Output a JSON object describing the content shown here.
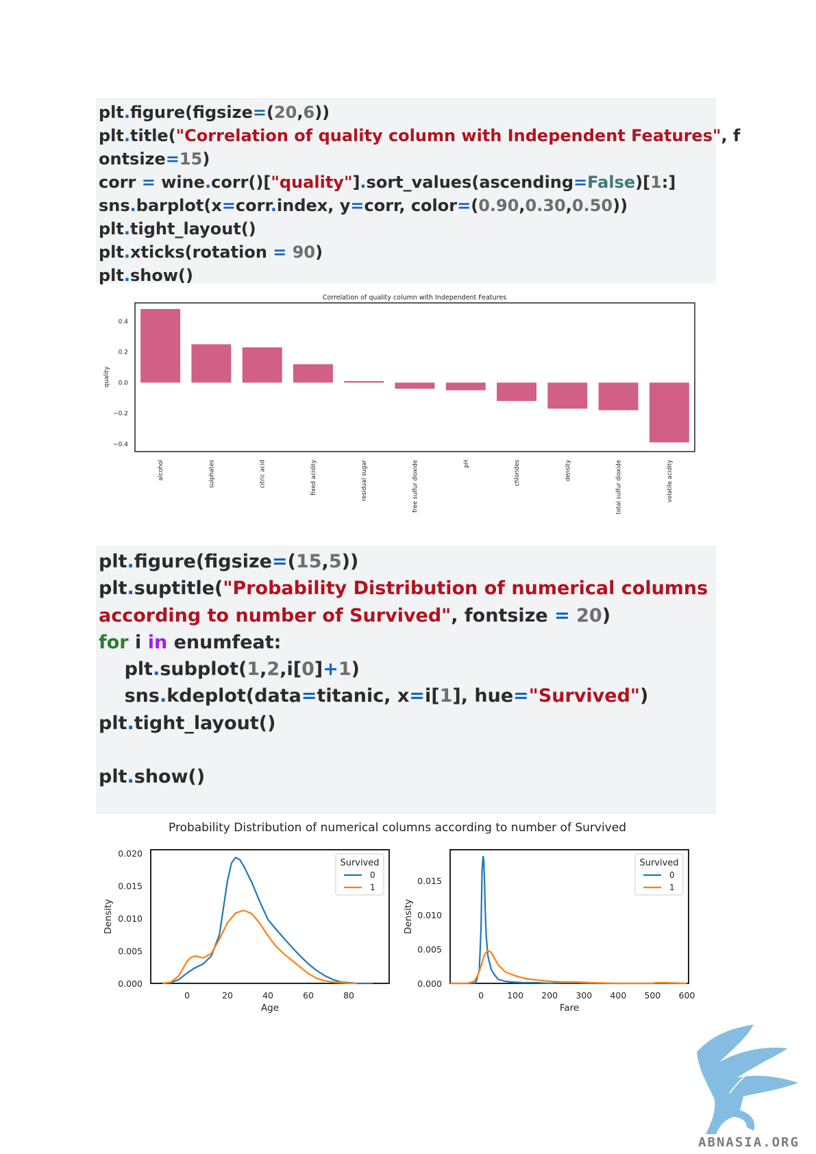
{
  "code_block_1": {
    "lines": [
      [
        [
          "plt",
          ""
        ],
        [
          ".",
          "op"
        ],
        [
          "figure(figsize",
          ""
        ],
        [
          "=",
          "op"
        ],
        [
          "(",
          ""
        ],
        [
          "20",
          "num"
        ],
        [
          ",",
          ""
        ],
        [
          "6",
          "num"
        ],
        [
          "))",
          ""
        ]
      ],
      [
        [
          "plt",
          ""
        ],
        [
          ".",
          "op"
        ],
        [
          "title(",
          ""
        ],
        [
          "\"Correlation of quality column with Independent Features\"",
          "str"
        ],
        [
          ", f",
          ""
        ]
      ],
      [
        [
          "ontsize",
          ""
        ],
        [
          "=",
          "op"
        ],
        [
          "15",
          "num"
        ],
        [
          ")",
          ""
        ]
      ],
      [
        [
          "corr ",
          ""
        ],
        [
          "=",
          "op"
        ],
        [
          " wine",
          ""
        ],
        [
          ".",
          "op"
        ],
        [
          "corr()[",
          ""
        ],
        [
          "\"quality\"",
          "str"
        ],
        [
          "]",
          ""
        ],
        [
          ".",
          "op"
        ],
        [
          "sort_values(ascending",
          ""
        ],
        [
          "=",
          "op"
        ],
        [
          "False",
          "bool"
        ],
        [
          ")[",
          ""
        ],
        [
          "1",
          "num"
        ],
        [
          ":]",
          ""
        ]
      ],
      [
        [
          "sns",
          ""
        ],
        [
          ".",
          "op"
        ],
        [
          "barplot(x",
          ""
        ],
        [
          "=",
          "op"
        ],
        [
          "corr",
          ""
        ],
        [
          ".",
          "op"
        ],
        [
          "index, y",
          ""
        ],
        [
          "=",
          "op"
        ],
        [
          "corr, color",
          ""
        ],
        [
          "=",
          "op"
        ],
        [
          "(",
          ""
        ],
        [
          "0.90",
          "num"
        ],
        [
          ",",
          ""
        ],
        [
          "0.30",
          "num"
        ],
        [
          ",",
          ""
        ],
        [
          "0.50",
          "num"
        ],
        [
          "))",
          ""
        ]
      ],
      [
        [
          "plt",
          ""
        ],
        [
          ".",
          "op"
        ],
        [
          "tight_layout()",
          ""
        ]
      ],
      [
        [
          "plt",
          ""
        ],
        [
          ".",
          "op"
        ],
        [
          "xticks(rotation ",
          ""
        ],
        [
          "=",
          "op"
        ],
        [
          " ",
          ""
        ],
        [
          "90",
          "num"
        ],
        [
          ")",
          ""
        ]
      ],
      [
        [
          "plt",
          ""
        ],
        [
          ".",
          "op"
        ],
        [
          "show()",
          ""
        ]
      ]
    ]
  },
  "code_block_2": {
    "lines": [
      [
        [
          "plt",
          ""
        ],
        [
          ".",
          "op"
        ],
        [
          "figure(figsize",
          ""
        ],
        [
          "=",
          "op"
        ],
        [
          "(",
          ""
        ],
        [
          "15",
          "num"
        ],
        [
          ",",
          ""
        ],
        [
          "5",
          "num"
        ],
        [
          "))",
          ""
        ]
      ],
      [
        [
          "plt",
          ""
        ],
        [
          ".",
          "op"
        ],
        [
          "suptitle(",
          ""
        ],
        [
          "\"Probability Distribution of numerical columns",
          "str"
        ]
      ],
      [
        [
          "according to number of Survived\"",
          "str"
        ],
        [
          ", fontsize ",
          ""
        ],
        [
          "=",
          "op"
        ],
        [
          " ",
          ""
        ],
        [
          "20",
          "num"
        ],
        [
          ")",
          ""
        ]
      ],
      [
        [
          "for",
          "kw"
        ],
        [
          " i ",
          ""
        ],
        [
          "in",
          "kw2"
        ],
        [
          " enumfeat:",
          ""
        ]
      ],
      [
        [
          "    plt",
          ""
        ],
        [
          ".",
          "op"
        ],
        [
          "subplot(",
          ""
        ],
        [
          "1",
          "num"
        ],
        [
          ",",
          ""
        ],
        [
          "2",
          "num"
        ],
        [
          ",i[",
          ""
        ],
        [
          "0",
          "num"
        ],
        [
          "]",
          ""
        ],
        [
          "+",
          "op"
        ],
        [
          "1",
          "num"
        ],
        [
          ")",
          ""
        ]
      ],
      [
        [
          "    sns",
          ""
        ],
        [
          ".",
          "op"
        ],
        [
          "kdeplot(data",
          ""
        ],
        [
          "=",
          "op"
        ],
        [
          "titanic, x",
          ""
        ],
        [
          "=",
          "op"
        ],
        [
          "i[",
          ""
        ],
        [
          "1",
          "num"
        ],
        [
          "], hue",
          ""
        ],
        [
          "=",
          "op"
        ],
        [
          "\"Survived\"",
          "str"
        ],
        [
          ")",
          ""
        ]
      ],
      [
        [
          "plt",
          ""
        ],
        [
          ".",
          "op"
        ],
        [
          "tight_layout()",
          ""
        ]
      ],
      [
        [
          "",
          ""
        ]
      ],
      [
        [
          "plt",
          ""
        ],
        [
          ".",
          "op"
        ],
        [
          "show()",
          ""
        ]
      ]
    ]
  },
  "chart_data": [
    {
      "type": "bar",
      "title": "Correlation of quality column with Independent Features",
      "xlabel": "",
      "ylabel": "quality",
      "ylim": [
        -0.45,
        0.52
      ],
      "yticks": [
        "0.4",
        "0.2",
        "0.0",
        "−0.2",
        "−0.4"
      ],
      "ytick_values": [
        0.4,
        0.2,
        0.0,
        -0.2,
        -0.4
      ],
      "categories": [
        "alcohol",
        "sulphates",
        "citric acid",
        "fixed acidity",
        "residual sugar",
        "free sulfur dioxide",
        "pH",
        "chlorides",
        "density",
        "total sulfur dioxide",
        "volatile acidity"
      ],
      "values": [
        0.48,
        0.25,
        0.23,
        0.12,
        0.01,
        -0.04,
        -0.05,
        -0.12,
        -0.17,
        -0.18,
        -0.39
      ],
      "color": "#d15f86",
      "grid": false
    },
    {
      "type": "line",
      "title": "",
      "xlabel": "Age",
      "ylabel": "Density",
      "xlim": [
        -18,
        100
      ],
      "ylim": [
        0,
        0.0205
      ],
      "xticks": [
        0,
        20,
        40,
        60,
        80
      ],
      "yticks": [
        "0.000",
        "0.005",
        "0.010",
        "0.015",
        "0.020"
      ],
      "ytick_values": [
        0,
        0.005,
        0.01,
        0.015,
        0.02
      ],
      "legend": {
        "title": "Survived",
        "placement": "top-right"
      },
      "series": [
        {
          "name": "0",
          "color": "#1f77b4",
          "x": [
            -12,
            -8,
            -4,
            0,
            4,
            8,
            12,
            16,
            20,
            22,
            24,
            26,
            28,
            32,
            36,
            40,
            44,
            48,
            52,
            56,
            60,
            64,
            68,
            72,
            76,
            80,
            84,
            88,
            92
          ],
          "y": [
            0,
            0.0001,
            0.0006,
            0.0016,
            0.0024,
            0.003,
            0.0042,
            0.0075,
            0.0158,
            0.0185,
            0.0193,
            0.019,
            0.018,
            0.0155,
            0.0125,
            0.0098,
            0.0083,
            0.0069,
            0.0055,
            0.0042,
            0.003,
            0.002,
            0.0012,
            0.0006,
            0.0002,
            0.0001,
            0,
            0,
            0
          ]
        },
        {
          "name": "1",
          "color": "#ff7f0e",
          "x": [
            -12,
            -8,
            -4,
            0,
            2,
            4,
            8,
            12,
            16,
            20,
            24,
            28,
            32,
            36,
            40,
            44,
            48,
            52,
            56,
            60,
            64,
            68,
            72,
            76,
            80,
            84
          ],
          "y": [
            0,
            0.0002,
            0.0012,
            0.0034,
            0.004,
            0.0042,
            0.0039,
            0.0046,
            0.0068,
            0.0093,
            0.0108,
            0.0112,
            0.0107,
            0.0092,
            0.0073,
            0.0057,
            0.0045,
            0.0035,
            0.0025,
            0.0015,
            0.0008,
            0.0004,
            0.0002,
            0.0001,
            0,
            0
          ]
        }
      ]
    },
    {
      "type": "line",
      "title": "",
      "xlabel": "Fare",
      "ylabel": "Density",
      "xlim": [
        -90,
        605
      ],
      "ylim": [
        0,
        0.0195
      ],
      "xticks": [
        0,
        100,
        200,
        300,
        400,
        500,
        600
      ],
      "yticks": [
        "0.000",
        "0.005",
        "0.010",
        "0.015"
      ],
      "ytick_values": [
        0,
        0.005,
        0.01,
        0.015
      ],
      "legend": {
        "title": "Survived",
        "placement": "top-right"
      },
      "series": [
        {
          "name": "0",
          "color": "#1f77b4",
          "x": [
            -90,
            -30,
            -15,
            -5,
            0,
            3,
            6,
            8,
            10,
            12,
            15,
            20,
            30,
            40,
            50,
            70,
            90,
            120,
            160,
            200,
            240,
            280,
            320,
            400,
            500,
            600
          ],
          "y": [
            0,
            0,
            0.0001,
            0.002,
            0.008,
            0.0165,
            0.0185,
            0.018,
            0.015,
            0.011,
            0.007,
            0.004,
            0.002,
            0.0012,
            0.0006,
            0.0003,
            0.0002,
            0.0001,
            0.0001,
            0,
            0.0001,
            0.0001,
            0,
            0,
            0,
            0
          ]
        },
        {
          "name": "1",
          "color": "#ff7f0e",
          "x": [
            -90,
            -40,
            -20,
            -10,
            0,
            10,
            20,
            30,
            40,
            50,
            70,
            100,
            130,
            160,
            200,
            240,
            280,
            320,
            400,
            500,
            510,
            530,
            600
          ],
          "y": [
            0,
            0,
            0.0003,
            0.0011,
            0.0025,
            0.0042,
            0.0048,
            0.0045,
            0.0036,
            0.0027,
            0.0017,
            0.0011,
            0.0007,
            0.0005,
            0.0003,
            0.0002,
            0.0002,
            0.0001,
            0,
            0,
            0.0001,
            0.0001,
            0
          ]
        }
      ]
    }
  ],
  "figure2_suptitle": "Probability Distribution of numerical columns according to number of Survived",
  "logo_text": "ABNASIA.ORG"
}
